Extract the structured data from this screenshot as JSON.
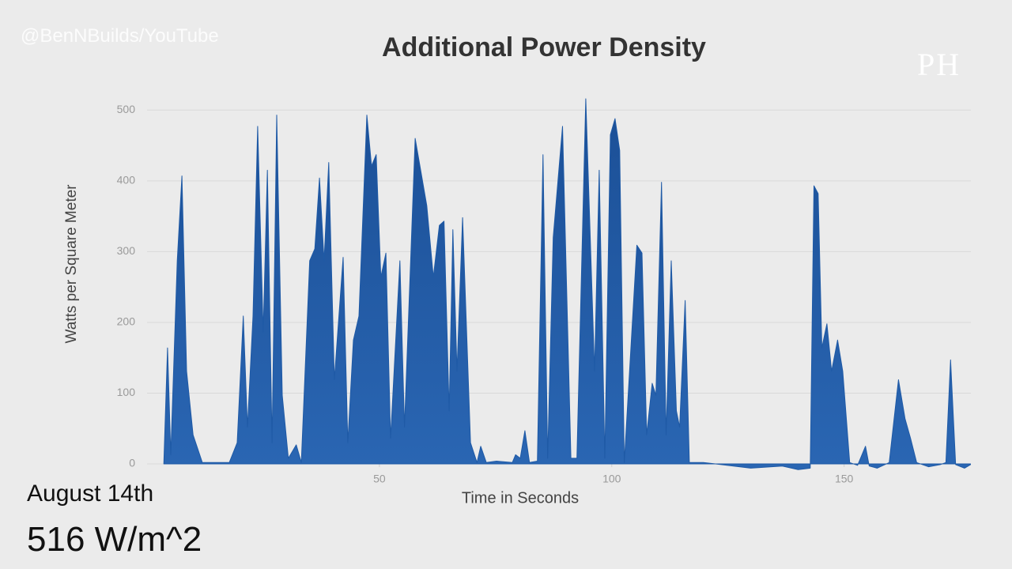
{
  "watermark": "@BenNBuilds/YouTube",
  "logo": "PH",
  "caption": {
    "date": "August 14th",
    "reading": "516 W/m^2"
  },
  "chart_data": {
    "type": "area",
    "title": "Additional Power Density",
    "x_label": "Time in Seconds",
    "y_label": "Watts per Square Meter",
    "color": "#1f5aa6",
    "grid": true,
    "xlim": [
      0,
      180
    ],
    "ylim": [
      -10,
      520
    ],
    "xticks": [
      50,
      100,
      150
    ],
    "yticks": [
      0,
      100,
      200,
      300,
      400,
      500
    ],
    "x": [
      3.6,
      4.4,
      5.1,
      6.5,
      7.5,
      8.5,
      9.9,
      11.9,
      17.7,
      19.4,
      20.7,
      21.6,
      22.8,
      23.8,
      25.0,
      25.9,
      26.9,
      27.9,
      29.1,
      30.4,
      32.1,
      33.2,
      35.0,
      36.1,
      37.1,
      38.1,
      39.1,
      40.3,
      42.2,
      43.2,
      44.4,
      45.6,
      47.3,
      48.3,
      49.3,
      50.3,
      51.4,
      52.4,
      54.4,
      55.4,
      57.7,
      60.2,
      61.6,
      62.9,
      63.9,
      65.0,
      65.8,
      66.7,
      67.9,
      69.6,
      71.0,
      71.8,
      73.0,
      75.2,
      78.6,
      79.3,
      80.3,
      81.3,
      82.3,
      84.0,
      85.2,
      86.2,
      87.4,
      89.4,
      91.2,
      92.5,
      94.4,
      96.3,
      97.3,
      98.5,
      99.7,
      100.7,
      101.7,
      102.7,
      105.4,
      106.5,
      107.5,
      108.7,
      109.5,
      110.7,
      111.7,
      112.8,
      113.9,
      114.6,
      115.8,
      116.7,
      119.7,
      122.3,
      129.9,
      136.7,
      140.1,
      142.7,
      143.5,
      144.4,
      145.2,
      146.3,
      147.3,
      148.6,
      149.7,
      151.2,
      152.9,
      154.6,
      155.4,
      157.1,
      159.7,
      161.7,
      163.1,
      164.3,
      165.6,
      168.2,
      170.7,
      171.9,
      172.9,
      174.0,
      175.9,
      177.2
    ],
    "values": [
      0,
      164,
      13,
      287,
      407,
      131,
      41,
      2,
      2,
      30,
      209,
      52,
      209,
      477,
      186,
      415,
      30,
      493,
      97,
      8,
      27,
      2,
      287,
      304,
      404,
      287,
      426,
      119,
      292,
      30,
      175,
      209,
      493,
      421,
      437,
      264,
      298,
      36,
      287,
      52,
      460,
      365,
      264,
      337,
      343,
      75,
      331,
      131,
      348,
      30,
      2,
      25,
      2,
      4,
      2,
      13,
      8,
      47,
      2,
      4,
      437,
      8,
      320,
      477,
      8,
      8,
      516,
      131,
      415,
      8,
      465,
      488,
      443,
      2,
      309,
      298,
      41,
      114,
      97,
      398,
      41,
      287,
      75,
      52,
      231,
      2,
      2,
      0,
      -6,
      -3,
      -8,
      -6,
      393,
      382,
      164,
      198,
      131,
      175,
      131,
      2,
      -2,
      25,
      -3,
      -6,
      2,
      119,
      64,
      36,
      2,
      -4,
      -1,
      2,
      147,
      -1,
      -6,
      -1
    ]
  }
}
